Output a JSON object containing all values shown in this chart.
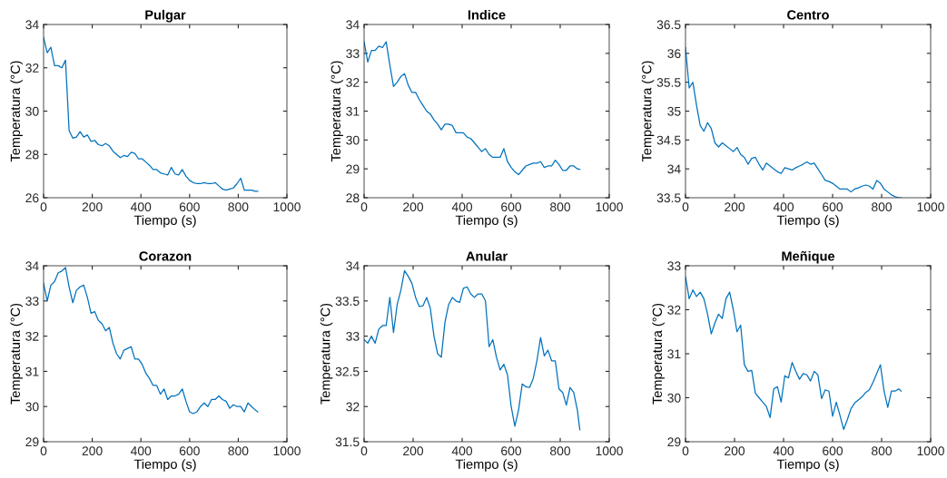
{
  "chart_data": [
    {
      "type": "line",
      "title": "Pulgar",
      "xlabel": "Tiempo (s)",
      "ylabel": "Temperatura (°C)",
      "xlim": [
        0,
        1000
      ],
      "xticks": [
        0,
        200,
        400,
        600,
        800,
        1000
      ],
      "ylim": [
        26,
        34
      ],
      "yticks": [
        26,
        28,
        30,
        32,
        34
      ],
      "grid": false,
      "x": [
        0,
        15,
        30,
        45,
        60,
        75,
        90,
        105,
        120,
        135,
        150,
        165,
        180,
        195,
        210,
        225,
        240,
        255,
        270,
        285,
        300,
        315,
        330,
        345,
        360,
        375,
        390,
        405,
        420,
        435,
        450,
        465,
        480,
        495,
        510,
        525,
        540,
        555,
        570,
        585,
        600,
        615,
        630,
        645,
        660,
        675,
        690,
        705,
        720,
        735,
        750,
        765,
        780,
        795,
        810,
        825,
        840,
        855,
        870,
        880
      ],
      "series": [
        {
          "color": "#0072bd",
          "values": [
            33.4,
            32.7,
            32.95,
            32.1,
            32.1,
            32.0,
            32.35,
            29.1,
            28.75,
            28.8,
            29.05,
            28.8,
            28.9,
            28.6,
            28.65,
            28.45,
            28.4,
            28.5,
            28.4,
            28.15,
            28.0,
            27.85,
            27.95,
            27.9,
            28.1,
            28.05,
            27.8,
            27.8,
            27.65,
            27.5,
            27.3,
            27.3,
            27.15,
            27.1,
            27.05,
            27.4,
            27.1,
            27.05,
            27.3,
            27.0,
            26.8,
            26.7,
            26.65,
            26.65,
            26.7,
            26.65,
            26.65,
            26.7,
            26.55,
            26.4,
            26.35,
            26.4,
            26.45,
            26.65,
            26.9,
            26.35,
            26.35,
            26.35,
            26.3,
            26.3
          ]
        }
      ]
    },
    {
      "type": "line",
      "title": "Indice",
      "xlabel": "Tiempo (s)",
      "ylabel": "Temperatura (°C)",
      "xlim": [
        0,
        1000
      ],
      "xticks": [
        0,
        200,
        400,
        600,
        800,
        1000
      ],
      "ylim": [
        28,
        34
      ],
      "yticks": [
        28,
        29,
        30,
        31,
        32,
        33,
        34
      ],
      "grid": false,
      "x": [
        0,
        15,
        30,
        45,
        60,
        75,
        90,
        105,
        120,
        135,
        150,
        165,
        180,
        195,
        210,
        225,
        240,
        255,
        270,
        285,
        300,
        315,
        330,
        345,
        360,
        375,
        390,
        405,
        420,
        435,
        450,
        465,
        480,
        495,
        510,
        525,
        540,
        555,
        570,
        585,
        600,
        615,
        630,
        645,
        660,
        675,
        690,
        705,
        720,
        735,
        750,
        765,
        780,
        795,
        810,
        825,
        840,
        855,
        870,
        880
      ],
      "series": [
        {
          "color": "#0072bd",
          "values": [
            33.4,
            32.7,
            33.1,
            33.1,
            33.25,
            33.2,
            33.4,
            32.6,
            31.85,
            32.0,
            32.2,
            32.3,
            31.9,
            31.65,
            31.65,
            31.4,
            31.2,
            31.0,
            30.9,
            30.7,
            30.55,
            30.35,
            30.55,
            30.55,
            30.5,
            30.25,
            30.25,
            30.25,
            30.1,
            30.05,
            29.9,
            29.75,
            29.6,
            29.7,
            29.5,
            29.4,
            29.4,
            29.4,
            29.7,
            29.25,
            29.05,
            28.9,
            28.8,
            28.95,
            29.1,
            29.15,
            29.2,
            29.2,
            29.25,
            29.05,
            29.1,
            29.1,
            29.3,
            29.15,
            28.95,
            28.95,
            29.1,
            29.1,
            29.0,
            28.98
          ]
        }
      ]
    },
    {
      "type": "line",
      "title": "Centro",
      "xlabel": "Tiempo (s)",
      "ylabel": "Temperatura (°C)",
      "xlim": [
        0,
        1000
      ],
      "xticks": [
        0,
        200,
        400,
        600,
        800,
        1000
      ],
      "ylim": [
        33.5,
        36.5
      ],
      "yticks": [
        33.5,
        34,
        34.5,
        35,
        35.5,
        36,
        36.5
      ],
      "grid": false,
      "x": [
        0,
        15,
        30,
        45,
        60,
        75,
        90,
        105,
        120,
        135,
        150,
        165,
        180,
        195,
        210,
        225,
        240,
        255,
        270,
        285,
        300,
        315,
        330,
        345,
        360,
        375,
        390,
        405,
        420,
        435,
        450,
        465,
        480,
        495,
        510,
        525,
        540,
        555,
        570,
        585,
        600,
        615,
        630,
        645,
        660,
        675,
        690,
        705,
        720,
        735,
        750,
        765,
        780,
        795,
        810,
        825,
        840,
        855,
        870,
        880
      ],
      "series": [
        {
          "color": "#0072bd",
          "values": [
            36.1,
            35.4,
            35.5,
            35.1,
            34.75,
            34.65,
            34.8,
            34.7,
            34.45,
            34.38,
            34.45,
            34.4,
            34.35,
            34.3,
            34.37,
            34.25,
            34.2,
            34.08,
            34.18,
            34.2,
            34.08,
            33.98,
            34.1,
            34.05,
            34.0,
            33.95,
            33.92,
            34.02,
            34.0,
            33.98,
            34.02,
            34.05,
            34.08,
            34.12,
            34.08,
            34.1,
            34.0,
            33.9,
            33.8,
            33.78,
            33.75,
            33.7,
            33.65,
            33.65,
            33.65,
            33.6,
            33.65,
            33.67,
            33.7,
            33.72,
            33.7,
            33.65,
            33.8,
            33.75,
            33.65,
            33.6,
            33.55,
            33.52,
            33.5,
            33.5
          ]
        }
      ]
    },
    {
      "type": "line",
      "title": "Corazon",
      "xlabel": "Tiempo (s)",
      "ylabel": "Temperatura (°C)",
      "xlim": [
        0,
        1000
      ],
      "xticks": [
        0,
        200,
        400,
        600,
        800,
        1000
      ],
      "ylim": [
        29,
        34
      ],
      "yticks": [
        29,
        30,
        31,
        32,
        33,
        34
      ],
      "grid": false,
      "x": [
        0,
        15,
        30,
        45,
        60,
        75,
        90,
        105,
        120,
        135,
        150,
        165,
        180,
        195,
        210,
        225,
        240,
        255,
        270,
        285,
        300,
        315,
        330,
        345,
        360,
        375,
        390,
        405,
        420,
        435,
        450,
        465,
        480,
        495,
        510,
        525,
        540,
        555,
        570,
        585,
        600,
        615,
        630,
        645,
        660,
        675,
        690,
        705,
        720,
        735,
        750,
        765,
        780,
        795,
        810,
        825,
        840,
        855,
        870,
        880
      ],
      "series": [
        {
          "color": "#0072bd",
          "values": [
            33.5,
            33.0,
            33.45,
            33.55,
            33.8,
            33.85,
            33.95,
            33.4,
            32.95,
            33.3,
            33.4,
            33.45,
            33.1,
            32.65,
            32.7,
            32.45,
            32.35,
            32.15,
            32.25,
            31.8,
            31.5,
            31.35,
            31.6,
            31.65,
            31.7,
            31.35,
            31.35,
            31.2,
            30.95,
            30.8,
            30.6,
            30.6,
            30.35,
            30.5,
            30.2,
            30.3,
            30.3,
            30.35,
            30.5,
            30.15,
            29.85,
            29.8,
            29.85,
            30.0,
            30.1,
            30.0,
            30.2,
            30.2,
            30.3,
            30.2,
            30.15,
            29.95,
            30.05,
            30.0,
            30.0,
            29.85,
            30.1,
            30.0,
            29.9,
            29.85
          ]
        }
      ]
    },
    {
      "type": "line",
      "title": "Anular",
      "xlabel": "Tiempo (s)",
      "ylabel": "Temperatura (°C)",
      "xlim": [
        0,
        1000
      ],
      "xticks": [
        0,
        200,
        400,
        600,
        800,
        1000
      ],
      "ylim": [
        31.5,
        34
      ],
      "yticks": [
        31.5,
        32,
        32.5,
        33,
        33.5,
        34
      ],
      "grid": false,
      "x": [
        0,
        15,
        30,
        45,
        60,
        75,
        90,
        105,
        120,
        135,
        150,
        165,
        180,
        195,
        210,
        225,
        240,
        255,
        270,
        285,
        300,
        315,
        330,
        345,
        360,
        375,
        390,
        405,
        420,
        435,
        450,
        465,
        480,
        495,
        510,
        525,
        540,
        555,
        570,
        585,
        600,
        615,
        630,
        645,
        660,
        675,
        690,
        705,
        720,
        735,
        750,
        765,
        780,
        795,
        810,
        825,
        840,
        855,
        870,
        880
      ],
      "series": [
        {
          "color": "#0072bd",
          "values": [
            32.95,
            32.9,
            33.0,
            32.9,
            33.1,
            33.15,
            33.15,
            33.55,
            33.05,
            33.45,
            33.65,
            33.93,
            33.85,
            33.75,
            33.55,
            33.42,
            33.43,
            33.55,
            33.4,
            33.0,
            32.75,
            32.7,
            33.2,
            33.45,
            33.55,
            33.5,
            33.48,
            33.68,
            33.7,
            33.6,
            33.55,
            33.6,
            33.6,
            33.5,
            32.85,
            32.95,
            32.7,
            32.52,
            32.6,
            32.45,
            32.0,
            31.72,
            31.95,
            32.32,
            32.28,
            32.27,
            32.4,
            32.65,
            32.98,
            32.72,
            32.8,
            32.65,
            32.65,
            32.25,
            32.2,
            32.02,
            32.27,
            32.2,
            31.95,
            31.67
          ]
        }
      ]
    },
    {
      "type": "line",
      "title": "Meñique",
      "xlabel": "Tiempo (s)",
      "ylabel": "Temperatura (°C)",
      "xlim": [
        0,
        1000
      ],
      "xticks": [
        0,
        200,
        400,
        600,
        800,
        1000
      ],
      "ylim": [
        29,
        33
      ],
      "yticks": [
        29,
        30,
        31,
        32,
        33
      ],
      "grid": false,
      "x": [
        0,
        15,
        30,
        45,
        60,
        75,
        90,
        105,
        120,
        135,
        150,
        165,
        180,
        195,
        210,
        225,
        240,
        255,
        270,
        285,
        300,
        315,
        330,
        345,
        360,
        375,
        390,
        405,
        420,
        435,
        450,
        465,
        480,
        495,
        510,
        525,
        540,
        555,
        570,
        585,
        600,
        615,
        630,
        645,
        660,
        675,
        690,
        705,
        720,
        735,
        750,
        765,
        780,
        795,
        810,
        825,
        840,
        855,
        870,
        880
      ],
      "series": [
        {
          "color": "#0072bd",
          "values": [
            32.75,
            32.25,
            32.45,
            32.3,
            32.4,
            32.25,
            31.9,
            31.45,
            31.7,
            31.9,
            31.8,
            32.25,
            32.4,
            32.0,
            31.5,
            31.65,
            30.75,
            30.6,
            30.62,
            30.1,
            30.0,
            29.9,
            29.8,
            29.55,
            30.2,
            30.25,
            29.9,
            30.5,
            30.45,
            30.8,
            30.6,
            30.42,
            30.55,
            30.52,
            30.38,
            30.6,
            30.52,
            29.98,
            30.18,
            30.15,
            29.58,
            29.9,
            29.6,
            29.28,
            29.5,
            29.75,
            29.88,
            29.95,
            30.02,
            30.12,
            30.18,
            30.35,
            30.55,
            30.75,
            30.15,
            29.78,
            30.15,
            30.15,
            30.2,
            30.15
          ]
        }
      ]
    }
  ]
}
